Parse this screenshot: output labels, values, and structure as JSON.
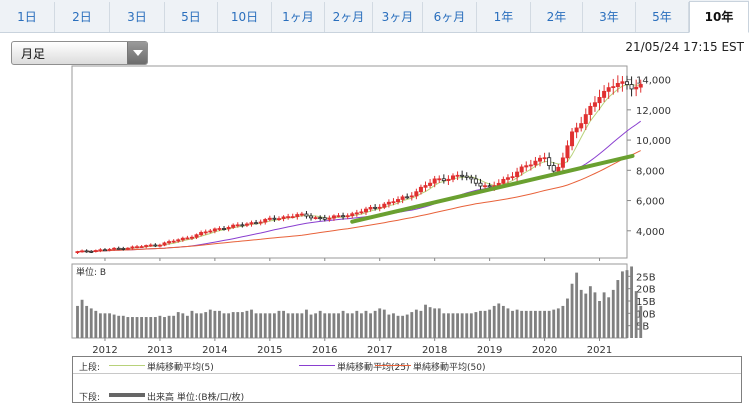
{
  "tabs": [
    {
      "label": "1日",
      "active": false
    },
    {
      "label": "2日",
      "active": false
    },
    {
      "label": "3日",
      "active": false
    },
    {
      "label": "5日",
      "active": false
    },
    {
      "label": "10日",
      "active": false
    },
    {
      "label": "1ヶ月",
      "active": false
    },
    {
      "label": "2ヶ月",
      "active": false
    },
    {
      "label": "3ヶ月",
      "active": false
    },
    {
      "label": "6ヶ月",
      "active": false
    },
    {
      "label": "1年",
      "active": false
    },
    {
      "label": "2年",
      "active": false
    },
    {
      "label": "3年",
      "active": false
    },
    {
      "label": "5年",
      "active": false
    },
    {
      "label": "10年",
      "active": true
    }
  ],
  "period_select": {
    "value": "月足"
  },
  "timestamp": "21/05/24 17:15 EST",
  "legend": {
    "upper_label": "上段:",
    "lower_label": "下段:",
    "ma5": "単純移動平均(5)",
    "ma25": "単純移動平均(25)",
    "ma50": "単純移動平均(50)",
    "volume": "出来高 単位:(B株/口/枚)"
  },
  "colors": {
    "up": "#e03030",
    "down": "#222222",
    "ma5": "#b8d27a",
    "ma25": "#8a3fd0",
    "ma50": "#e8623a",
    "trendline": "#6aa030",
    "volume": "#808080"
  },
  "chart_data": [
    {
      "type": "candlestick",
      "title": "",
      "x_labels": [
        "2012",
        "2013",
        "2014",
        "2015",
        "2016",
        "2017",
        "2018",
        "2019",
        "2020",
        "2021"
      ],
      "x_range": [
        2011.4,
        2021.5
      ],
      "y_ticks": [
        "4,000",
        "6,000",
        "8,000",
        "10,000",
        "12,000",
        "14,000"
      ],
      "y_tick_values": [
        4000,
        6000,
        8000,
        10000,
        12000,
        14000
      ],
      "ylim": [
        2200,
        14900
      ],
      "close_anchors": [
        [
          2011.5,
          2600
        ],
        [
          2012.0,
          2750
        ],
        [
          2012.5,
          2900
        ],
        [
          2013.0,
          3100
        ],
        [
          2013.5,
          3550
        ],
        [
          2014.0,
          4100
        ],
        [
          2014.5,
          4400
        ],
        [
          2015.0,
          4750
        ],
        [
          2015.5,
          5050
        ],
        [
          2016.0,
          4800
        ],
        [
          2016.5,
          5100
        ],
        [
          2017.0,
          5650
        ],
        [
          2017.5,
          6250
        ],
        [
          2018.0,
          7350
        ],
        [
          2018.5,
          7650
        ],
        [
          2019.0,
          6800
        ],
        [
          2019.5,
          7900
        ],
        [
          2020.0,
          8950
        ],
        [
          2020.2,
          7600
        ],
        [
          2020.5,
          10500
        ],
        [
          2020.8,
          11800
        ],
        [
          2021.0,
          13000
        ],
        [
          2021.3,
          13800
        ],
        [
          2021.4,
          13600
        ]
      ],
      "series": [
        {
          "name": "単純移動平均(5)"
        },
        {
          "name": "単純移動平均(25)"
        },
        {
          "name": "単純移動平均(50)"
        }
      ],
      "trendline": {
        "start": [
          2016.5,
          4600
        ],
        "end": [
          2021.6,
          8950
        ]
      }
    },
    {
      "type": "bar",
      "label": "単位: B",
      "y_ticks": [
        "5B",
        "10B",
        "15B",
        "20B",
        "25B"
      ],
      "y_tick_values": [
        5,
        10,
        15,
        20,
        25
      ],
      "ylim": [
        0,
        30
      ],
      "values": [
        13,
        15.5,
        13,
        12,
        11,
        10,
        10,
        10,
        9.5,
        9,
        9,
        8.5,
        8.5,
        8.5,
        8.5,
        8.5,
        8.5,
        8.5,
        9,
        8.5,
        9,
        9,
        10.5,
        10,
        9,
        11,
        10,
        10,
        10.5,
        11.5,
        11,
        11,
        10,
        10,
        10.5,
        10.5,
        10.5,
        11,
        11.5,
        10,
        10,
        10,
        10,
        10,
        11,
        11,
        10,
        10,
        10,
        10,
        11.5,
        9.5,
        10,
        11,
        10,
        10,
        10,
        10,
        11,
        10,
        10,
        11,
        10,
        11,
        10,
        11,
        12,
        11.5,
        9.5,
        10,
        9,
        9,
        9.5,
        10.5,
        11.5,
        11,
        13.5,
        12.5,
        12,
        12,
        10,
        10,
        10,
        10,
        10,
        10,
        10,
        10.5,
        11,
        11,
        11.5,
        13,
        14,
        13,
        12,
        11,
        11.5,
        11,
        11,
        11,
        11,
        11,
        11,
        11,
        11.5,
        12,
        13,
        16,
        22,
        26.5,
        19.5,
        18,
        21,
        18.5,
        15,
        18.5,
        16.5,
        19.5,
        23.5,
        27,
        27.5,
        29,
        19,
        13
      ]
    }
  ]
}
